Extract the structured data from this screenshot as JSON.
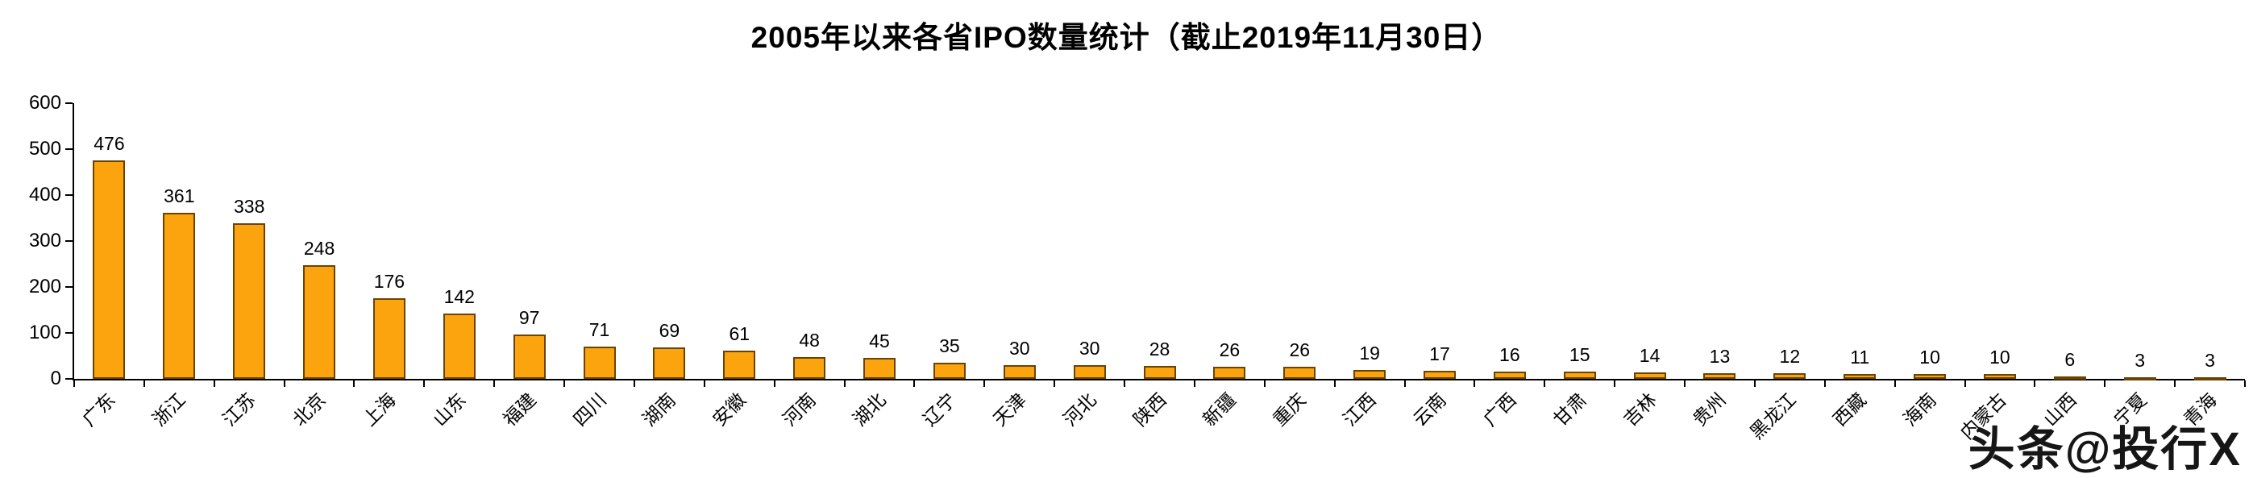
{
  "title": "2005年以来各省IPO数量统计（截止2019年11月30日）",
  "watermark": "头条@投行X",
  "colors": {
    "bar_fill": "#FCA40E",
    "bar_border": "#6B4300",
    "axis": "#000000"
  },
  "chart_data": {
    "type": "bar",
    "title": "2005年以来各省IPO数量统计（截止2019年11月30日）",
    "categories": [
      "广东",
      "浙江",
      "江苏",
      "北京",
      "上海",
      "山东",
      "福建",
      "四川",
      "湖南",
      "安徽",
      "河南",
      "湖北",
      "辽宁",
      "天津",
      "河北",
      "陕西",
      "新疆",
      "重庆",
      "江西",
      "云南",
      "广西",
      "甘肃",
      "吉林",
      "贵州",
      "黑龙江",
      "西藏",
      "海南",
      "内蒙古",
      "山西",
      "宁夏",
      "青海"
    ],
    "values": [
      476,
      361,
      338,
      248,
      176,
      142,
      97,
      71,
      69,
      61,
      48,
      45,
      35,
      30,
      30,
      28,
      26,
      26,
      19,
      17,
      16,
      15,
      14,
      13,
      12,
      11,
      10,
      10,
      6,
      3,
      3
    ],
    "xlabel": "",
    "ylabel": "",
    "ylim": [
      0,
      600
    ],
    "yticks": [
      0,
      100,
      200,
      300,
      400,
      500,
      600
    ],
    "grid": false,
    "legend": false,
    "bar_color": "#FCA40E",
    "bar_border_color": "#6B4300",
    "value_labels": true,
    "x_label_rotation": 45
  }
}
